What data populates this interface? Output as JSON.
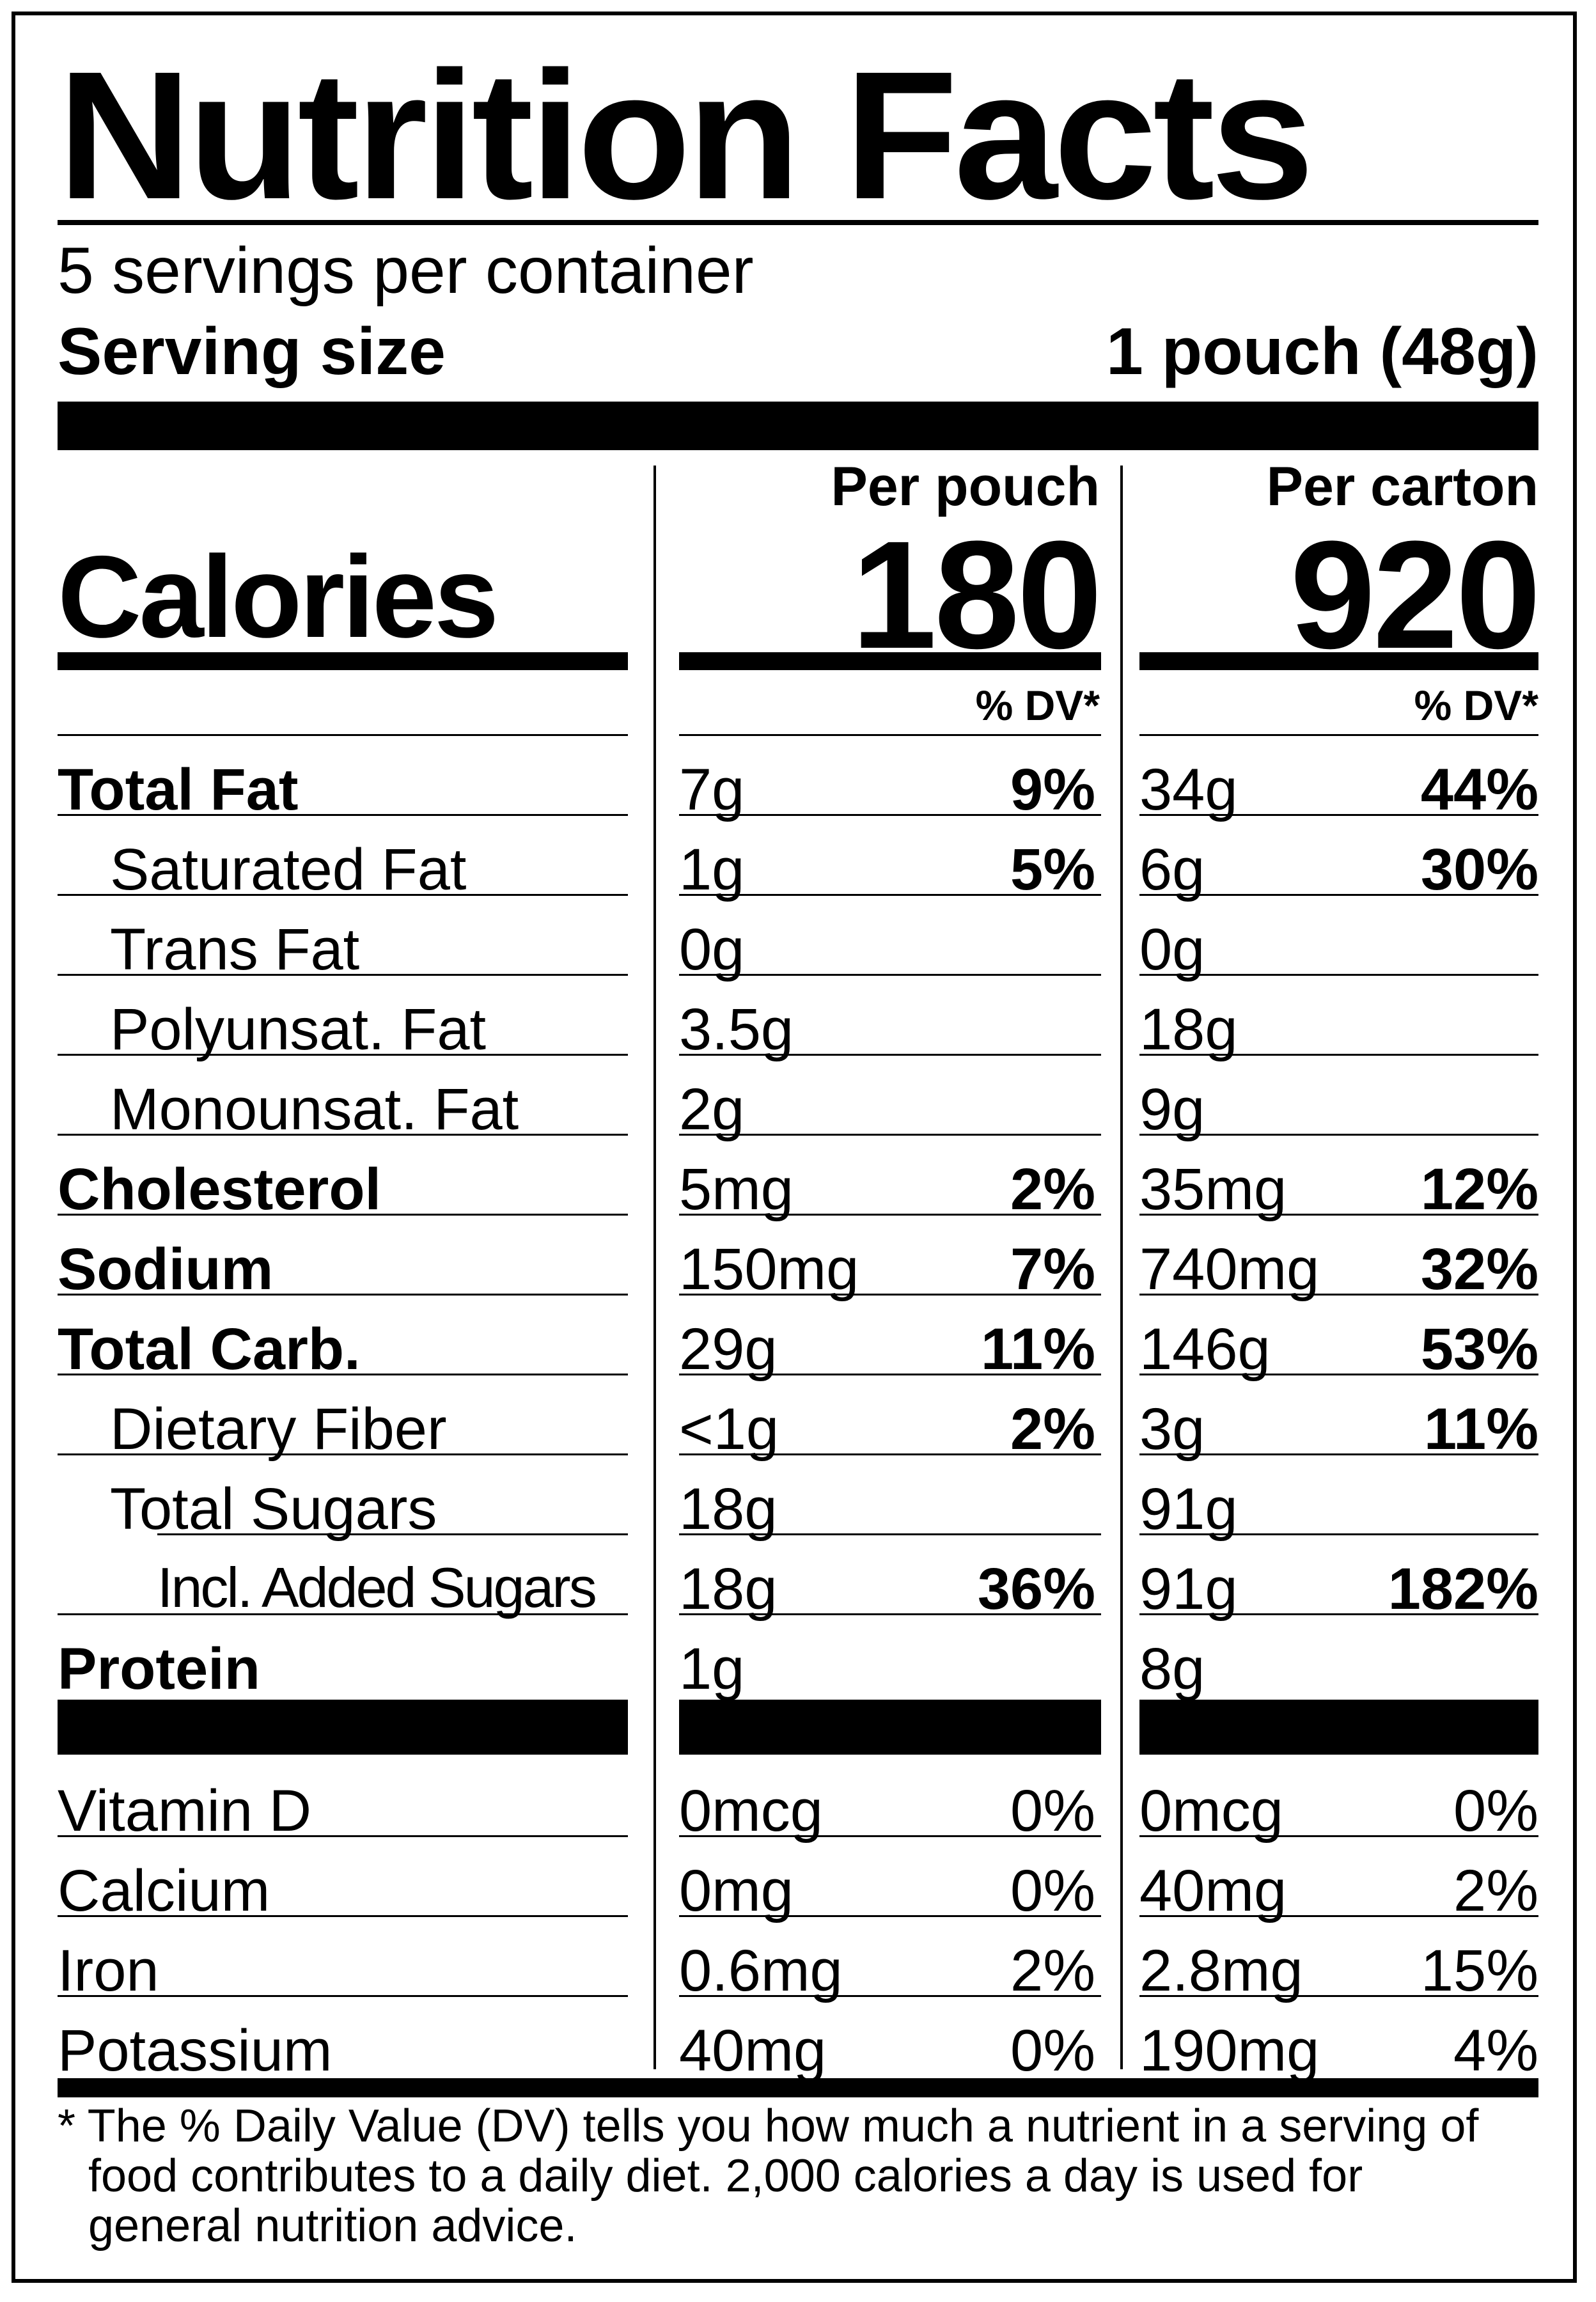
{
  "title": "Nutrition Facts",
  "servings_per_container": "5 servings per container",
  "serving_size_label": "Serving size",
  "serving_size_value": "1 pouch (48g)",
  "columns": {
    "per_pouch": "Per pouch",
    "per_carton": "Per carton"
  },
  "calories": {
    "label": "Calories",
    "per_pouch": "180",
    "per_carton": "920"
  },
  "dv_header": "% DV*",
  "nutrients": [
    {
      "label": "Total Fat",
      "pouch_amt": "7g",
      "pouch_dv": "9%",
      "carton_amt": "34g",
      "carton_dv": "44%"
    },
    {
      "label": "Saturated Fat",
      "pouch_amt": "1g",
      "pouch_dv": "5%",
      "carton_amt": "6g",
      "carton_dv": "30%"
    },
    {
      "label": "Trans Fat",
      "pouch_amt": "0g",
      "pouch_dv": "",
      "carton_amt": "0g",
      "carton_dv": ""
    },
    {
      "label": "Polyunsat. Fat",
      "pouch_amt": "3.5g",
      "pouch_dv": "",
      "carton_amt": "18g",
      "carton_dv": ""
    },
    {
      "label": "Monounsat. Fat",
      "pouch_amt": "2g",
      "pouch_dv": "",
      "carton_amt": "9g",
      "carton_dv": ""
    },
    {
      "label": "Cholesterol",
      "pouch_amt": "5mg",
      "pouch_dv": "2%",
      "carton_amt": "35mg",
      "carton_dv": "12%"
    },
    {
      "label": "Sodium",
      "pouch_amt": "150mg",
      "pouch_dv": "7%",
      "carton_amt": "740mg",
      "carton_dv": "32%"
    },
    {
      "label": "Total Carb.",
      "pouch_amt": "29g",
      "pouch_dv": "11%",
      "carton_amt": "146g",
      "carton_dv": "53%"
    },
    {
      "label": "Dietary Fiber",
      "pouch_amt": "<1g",
      "pouch_dv": "2%",
      "carton_amt": "3g",
      "carton_dv": "11%"
    },
    {
      "label": "Total Sugars",
      "pouch_amt": "18g",
      "pouch_dv": "",
      "carton_amt": "91g",
      "carton_dv": ""
    },
    {
      "label": "Incl. Added Sugars",
      "pouch_amt": "18g",
      "pouch_dv": "36%",
      "carton_amt": "91g",
      "carton_dv": "182%"
    },
    {
      "label": "Protein",
      "pouch_amt": "1g",
      "pouch_dv": "",
      "carton_amt": "8g",
      "carton_dv": ""
    }
  ],
  "vitamins": [
    {
      "label": "Vitamin D",
      "pouch_amt": "0mcg",
      "pouch_dv": "0%",
      "carton_amt": "0mcg",
      "carton_dv": "0%"
    },
    {
      "label": "Calcium",
      "pouch_amt": "0mg",
      "pouch_dv": "0%",
      "carton_amt": "40mg",
      "carton_dv": "2%"
    },
    {
      "label": "Iron",
      "pouch_amt": "0.6mg",
      "pouch_dv": "2%",
      "carton_amt": "2.8mg",
      "carton_dv": "15%"
    },
    {
      "label": "Potassium",
      "pouch_amt": "40mg",
      "pouch_dv": "0%",
      "carton_amt": "190mg",
      "carton_dv": "4%"
    }
  ],
  "footnote": {
    "line1": "* The % Daily Value (DV) tells you how much a nutrient in a serving of",
    "line2": "food contributes to a daily diet. 2,000 calories a day is used for",
    "line3": "general nutrition advice."
  }
}
